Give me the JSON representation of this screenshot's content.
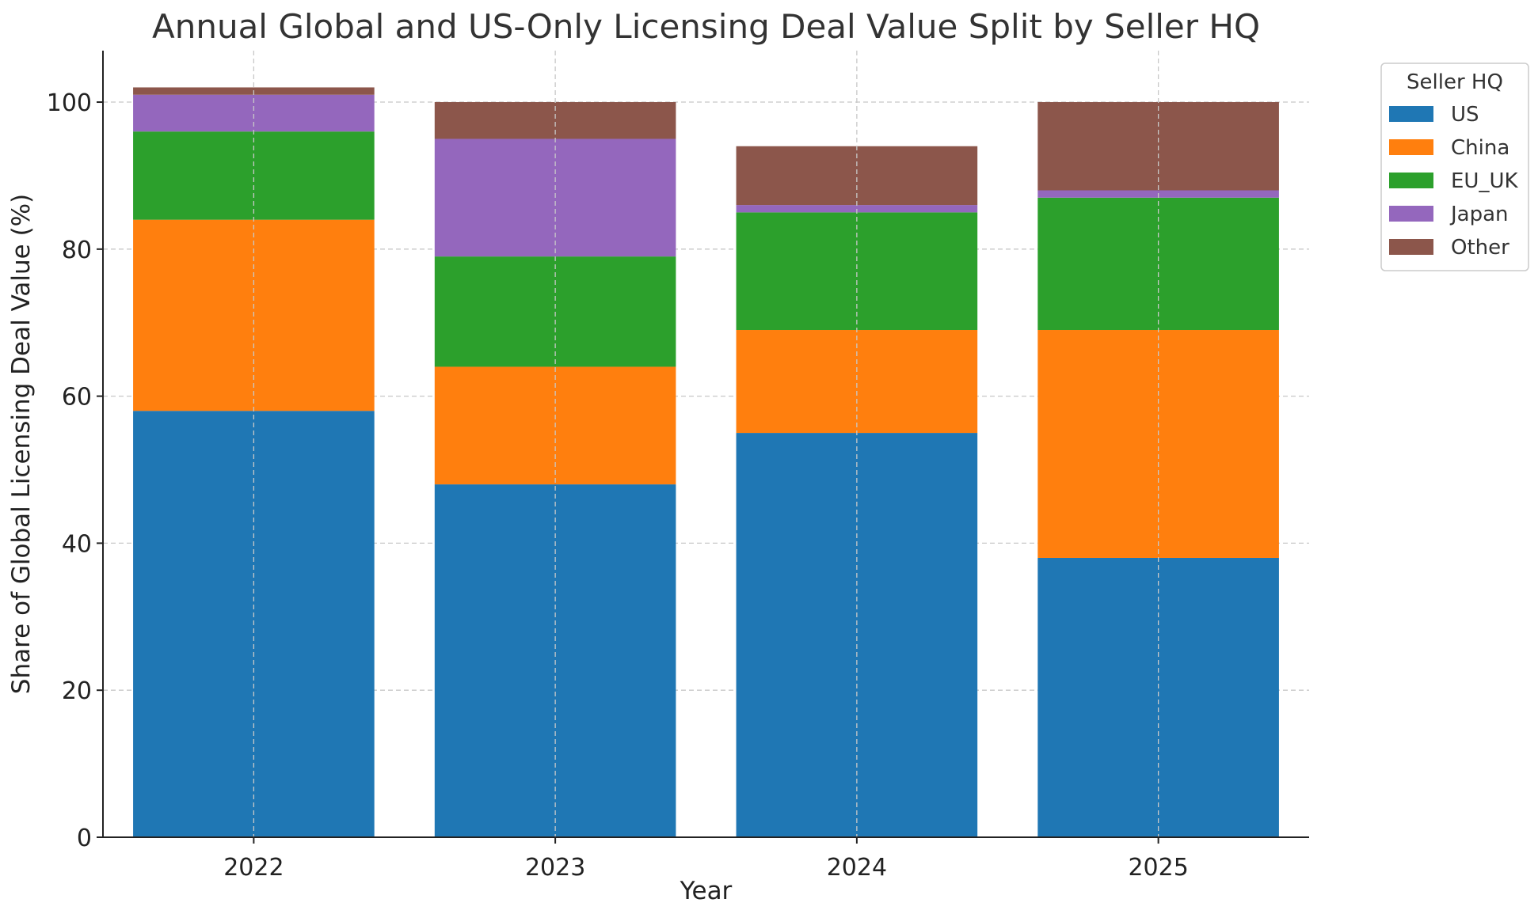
{
  "chart_data": {
    "type": "bar",
    "stacked": true,
    "title": "Annual Global and US-Only Licensing Deal Value Split by Seller HQ",
    "xlabel": "Year",
    "ylabel": "Share of Global Licensing Deal Value (%)",
    "ylim": [
      0,
      107
    ],
    "yticks": [
      0,
      20,
      40,
      60,
      80,
      100
    ],
    "grid": true,
    "categories": [
      "2022",
      "2023",
      "2024",
      "2025"
    ],
    "legend": {
      "title": "Seller HQ",
      "placement": "outside-top-right"
    },
    "series": [
      {
        "name": "US",
        "color": "#1f77b4",
        "values": [
          58,
          48,
          55,
          38
        ]
      },
      {
        "name": "China",
        "color": "#ff7f0e",
        "values": [
          26,
          16,
          14,
          31
        ]
      },
      {
        "name": "EU_UK",
        "color": "#2ca02c",
        "values": [
          12,
          15,
          16,
          18
        ]
      },
      {
        "name": "Japan",
        "color": "#9467bd",
        "values": [
          5,
          16,
          1,
          1
        ]
      },
      {
        "name": "Other",
        "color": "#8c564b",
        "values": [
          1,
          5,
          8,
          12
        ]
      }
    ]
  }
}
